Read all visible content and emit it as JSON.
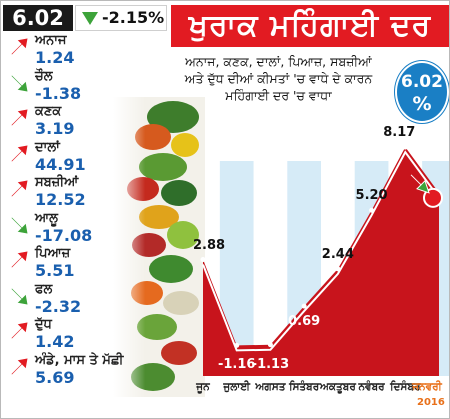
{
  "header": {
    "current_value": "6.02",
    "change": "-2.15%",
    "title": "ਖੁਰਾਕ ਮਹਿੰਗਾਈ ਦਰ",
    "subtitle_lines": [
      "ਅਨਾਜ, ਕਣਕ, ਦਾਲਾਂ, ਪਿਆਜ਼, ਸਬਜ਼ੀਆਂ",
      "ਅਤੇ ਦੁੱਧ ਦੀਆਂ ਕੀਮਤਾਂ 'ਚ ਵਾਧੇ ਦੇ ਕਾਰਨ",
      "ਮਹਿੰਗਾਈ ਦਰ 'ਚ ਵਾਧਾ"
    ],
    "badge_value": "6.02",
    "badge_unit": "%"
  },
  "colors": {
    "accent_red": "#e21b22",
    "value_blue": "#1a5fae",
    "badge_blue": "#1a7fc5",
    "up_arrow": "#e21b22",
    "down_arrow": "#3da33a",
    "area_fill": "#c8141c",
    "stripe_blue": "#d6ebf7",
    "month_orange": "#e8701a"
  },
  "commodities": [
    {
      "name": "ਅਨਾਜ",
      "value": "1.24",
      "direction": "up"
    },
    {
      "name": "ਚੌਲ",
      "value": "-1.38",
      "direction": "down"
    },
    {
      "name": "ਕਣਕ",
      "value": "3.19",
      "direction": "up"
    },
    {
      "name": "ਦਾਲਾਂ",
      "value": "44.91",
      "direction": "up"
    },
    {
      "name": "ਸਬਜ਼ੀਆਂ",
      "value": "12.52",
      "direction": "up"
    },
    {
      "name": "ਆਲੂ",
      "value": "-17.08",
      "direction": "down"
    },
    {
      "name": "ਪਿਆਜ਼",
      "value": "5.51",
      "direction": "up"
    },
    {
      "name": "ਫਲ",
      "value": "-2.32",
      "direction": "down"
    },
    {
      "name": "ਦੁੱਧ",
      "value": "1.42",
      "direction": "up"
    },
    {
      "name": "ਅੰਡੇ, ਮਾਸ ਤੇ ਮੱਛੀ",
      "value": "5.69",
      "direction": "up"
    }
  ],
  "chart_data": {
    "type": "area",
    "categories": [
      "ਜੂਨ",
      "ਜੁਲਾਈ",
      "ਅਗਸਤ",
      "ਸਿਤੰਬਰ",
      "ਅਕਤੂਬਰ",
      "ਨਵੰਬਰ",
      "ਦਿਸੰਬਰ",
      "ਜਨਵਰੀ"
    ],
    "values": [
      2.88,
      -1.16,
      -1.13,
      0.69,
      2.44,
      5.2,
      8.17,
      6.02
    ],
    "labels": [
      "2.88",
      "-1.16",
      "-1.13",
      "0.69",
      "2.44",
      "5.20",
      "8.17",
      ""
    ],
    "year_label": "2016",
    "ylim": [
      -2.6,
      9.4
    ],
    "last_point_direction": "down"
  }
}
